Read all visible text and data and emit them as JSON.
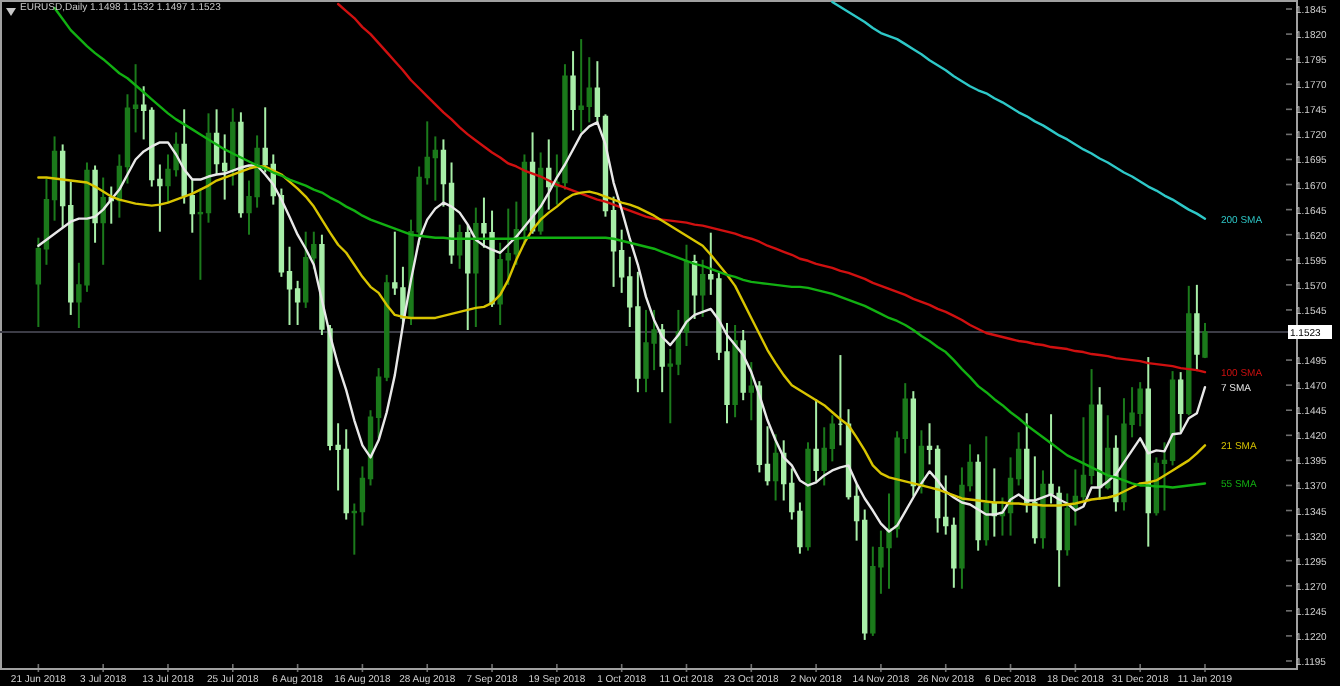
{
  "chart_data": {
    "type": "candlestick",
    "title": "EURUSD,Daily  1.1498 1.1532 1.1497 1.1523",
    "categories": [
      "21 Jun 2018",
      null,
      null,
      null,
      null,
      null,
      null,
      null,
      "3 Jul 2018",
      null,
      null,
      null,
      null,
      null,
      null,
      null,
      "13 Jul 2018",
      null,
      null,
      null,
      null,
      null,
      null,
      null,
      "25 Jul 2018",
      null,
      null,
      null,
      null,
      null,
      null,
      null,
      "6 Aug 2018",
      null,
      null,
      null,
      null,
      null,
      null,
      null,
      "16 Aug 2018",
      null,
      null,
      null,
      null,
      null,
      null,
      null,
      "28 Aug 2018",
      null,
      null,
      null,
      null,
      null,
      null,
      null,
      "7 Sep 2018",
      null,
      null,
      null,
      null,
      null,
      null,
      null,
      "19 Sep 2018",
      null,
      null,
      null,
      null,
      null,
      null,
      null,
      "1 Oct 2018",
      null,
      null,
      null,
      null,
      null,
      null,
      null,
      "11 Oct 2018",
      null,
      null,
      null,
      null,
      null,
      null,
      null,
      "23 Oct 2018",
      null,
      null,
      null,
      null,
      null,
      null,
      null,
      "2 Nov 2018",
      null,
      null,
      null,
      null,
      null,
      null,
      null,
      "14 Nov 2018",
      null,
      null,
      null,
      null,
      null,
      null,
      null,
      "26 Nov 2018",
      null,
      null,
      null,
      null,
      null,
      null,
      null,
      "6 Dec 2018",
      null,
      null,
      null,
      null,
      null,
      null,
      null,
      "18 Dec 2018",
      null,
      null,
      null,
      null,
      null,
      null,
      null,
      "31 Dec 2018",
      null,
      null,
      null,
      null,
      null,
      null,
      null,
      "11 Jan 2019"
    ],
    "ohlc": [
      [
        1.1571,
        1.1617,
        1.1528,
        1.1606
      ],
      [
        1.1606,
        1.1676,
        1.159,
        1.1655
      ],
      [
        1.1655,
        1.1718,
        1.1634,
        1.1703
      ],
      [
        1.1703,
        1.171,
        1.1627,
        1.1649
      ],
      [
        1.1649,
        1.1673,
        1.154,
        1.1553
      ],
      [
        1.1553,
        1.1592,
        1.1527,
        1.157
      ],
      [
        1.157,
        1.1692,
        1.1563,
        1.1684
      ],
      [
        1.1684,
        1.1689,
        1.1612,
        1.1632
      ],
      [
        1.1632,
        1.1677,
        1.159,
        1.1657
      ],
      [
        1.1657,
        1.1668,
        1.1631,
        1.1654
      ],
      [
        1.1654,
        1.17,
        1.1637,
        1.1688
      ],
      [
        1.1688,
        1.176,
        1.1671,
        1.1746
      ],
      [
        1.1746,
        1.179,
        1.1722,
        1.1749
      ],
      [
        1.1749,
        1.1768,
        1.1715,
        1.1744
      ],
      [
        1.1744,
        1.1747,
        1.1668,
        1.1675
      ],
      [
        1.1675,
        1.169,
        1.1623,
        1.1669
      ],
      [
        1.1669,
        1.17,
        1.1652,
        1.1685
      ],
      [
        1.1685,
        1.1722,
        1.1678,
        1.171
      ],
      [
        1.171,
        1.1745,
        1.1651,
        1.1659
      ],
      [
        1.1659,
        1.1676,
        1.1622,
        1.1641
      ],
      [
        1.1641,
        1.1666,
        1.1575,
        1.1642
      ],
      [
        1.1642,
        1.1741,
        1.1632,
        1.1721
      ],
      [
        1.1721,
        1.1745,
        1.168,
        1.1691
      ],
      [
        1.1691,
        1.172,
        1.1655,
        1.1684
      ],
      [
        1.1684,
        1.1746,
        1.1669,
        1.1732
      ],
      [
        1.1732,
        1.1742,
        1.1637,
        1.1642
      ],
      [
        1.1642,
        1.1674,
        1.162,
        1.1658
      ],
      [
        1.1658,
        1.1719,
        1.1647,
        1.1706
      ],
      [
        1.1706,
        1.1747,
        1.1682,
        1.169
      ],
      [
        1.169,
        1.17,
        1.165,
        1.1659
      ],
      [
        1.1659,
        1.1666,
        1.1578,
        1.1583
      ],
      [
        1.1583,
        1.1608,
        1.153,
        1.1566
      ],
      [
        1.1566,
        1.1574,
        1.153,
        1.1553
      ],
      [
        1.1553,
        1.1623,
        1.1547,
        1.1597
      ],
      [
        1.1597,
        1.1623,
        1.1586,
        1.161
      ],
      [
        1.161,
        1.162,
        1.152,
        1.1526
      ],
      [
        1.1526,
        1.153,
        1.1405,
        1.141
      ],
      [
        1.141,
        1.1432,
        1.1365,
        1.1406
      ],
      [
        1.1406,
        1.1426,
        1.1336,
        1.1343
      ],
      [
        1.1343,
        1.1352,
        1.1301,
        1.1344
      ],
      [
        1.1344,
        1.1389,
        1.133,
        1.1377
      ],
      [
        1.1377,
        1.1445,
        1.137,
        1.1438
      ],
      [
        1.1438,
        1.1487,
        1.1417,
        1.1478
      ],
      [
        1.1478,
        1.158,
        1.1474,
        1.1572
      ],
      [
        1.1572,
        1.1623,
        1.156,
        1.1567
      ],
      [
        1.1567,
        1.1588,
        1.1529,
        1.1537
      ],
      [
        1.1537,
        1.1635,
        1.153,
        1.1623
      ],
      [
        1.1623,
        1.1688,
        1.161,
        1.1677
      ],
      [
        1.1677,
        1.1733,
        1.167,
        1.1697
      ],
      [
        1.1697,
        1.1718,
        1.1654,
        1.1704
      ],
      [
        1.1704,
        1.1715,
        1.1648,
        1.1671
      ],
      [
        1.1671,
        1.1692,
        1.1591,
        1.16
      ],
      [
        1.16,
        1.163,
        1.1586,
        1.1622
      ],
      [
        1.1622,
        1.163,
        1.1525,
        1.1582
      ],
      [
        1.1582,
        1.1647,
        1.1528,
        1.1631
      ],
      [
        1.1631,
        1.1657,
        1.1607,
        1.1622
      ],
      [
        1.1622,
        1.1644,
        1.1548,
        1.1551
      ],
      [
        1.1551,
        1.1612,
        1.153,
        1.1595
      ],
      [
        1.1595,
        1.1646,
        1.157,
        1.1601
      ],
      [
        1.1601,
        1.1653,
        1.159,
        1.1625
      ],
      [
        1.1625,
        1.17,
        1.161,
        1.1692
      ],
      [
        1.1692,
        1.1722,
        1.1621,
        1.1624
      ],
      [
        1.1624,
        1.1702,
        1.162,
        1.1686
      ],
      [
        1.1686,
        1.1715,
        1.1645,
        1.1668
      ],
      [
        1.1668,
        1.17,
        1.165,
        1.1672
      ],
      [
        1.1672,
        1.179,
        1.1665,
        1.1778
      ],
      [
        1.1778,
        1.1803,
        1.1724,
        1.1745
      ],
      [
        1.1745,
        1.1815,
        1.1722,
        1.1748
      ],
      [
        1.1748,
        1.1797,
        1.1732,
        1.1766
      ],
      [
        1.1766,
        1.1793,
        1.173,
        1.1738
      ],
      [
        1.1738,
        1.174,
        1.1638,
        1.1644
      ],
      [
        1.1644,
        1.1658,
        1.1568,
        1.1604
      ],
      [
        1.1604,
        1.1625,
        1.1562,
        1.1578
      ],
      [
        1.1578,
        1.1598,
        1.1528,
        1.1548
      ],
      [
        1.1548,
        1.1583,
        1.1463,
        1.1477
      ],
      [
        1.1477,
        1.1545,
        1.1463,
        1.1512
      ],
      [
        1.1512,
        1.1545,
        1.1485,
        1.1525
      ],
      [
        1.1525,
        1.1531,
        1.1463,
        1.1489
      ],
      [
        1.1489,
        1.1506,
        1.1432,
        1.1491
      ],
      [
        1.1491,
        1.1545,
        1.148,
        1.1523
      ],
      [
        1.1523,
        1.161,
        1.1509,
        1.1593
      ],
      [
        1.1593,
        1.16,
        1.1536,
        1.156
      ],
      [
        1.156,
        1.1595,
        1.1538,
        1.158
      ],
      [
        1.158,
        1.1622,
        1.156,
        1.1576
      ],
      [
        1.1576,
        1.1582,
        1.1495,
        1.1503
      ],
      [
        1.1503,
        1.1532,
        1.1432,
        1.1451
      ],
      [
        1.1451,
        1.153,
        1.1438,
        1.1514
      ],
      [
        1.1514,
        1.1525,
        1.1455,
        1.1463
      ],
      [
        1.1463,
        1.1493,
        1.1435,
        1.1469
      ],
      [
        1.1469,
        1.1474,
        1.1383,
        1.1391
      ],
      [
        1.1391,
        1.1429,
        1.137,
        1.1375
      ],
      [
        1.1375,
        1.1421,
        1.1355,
        1.1402
      ],
      [
        1.1402,
        1.1415,
        1.1355,
        1.1372
      ],
      [
        1.1372,
        1.1387,
        1.1336,
        1.1344
      ],
      [
        1.1344,
        1.1353,
        1.1302,
        1.1309
      ],
      [
        1.1309,
        1.1413,
        1.1305,
        1.1406
      ],
      [
        1.1406,
        1.1456,
        1.1374,
        1.1385
      ],
      [
        1.1385,
        1.1428,
        1.137,
        1.1407
      ],
      [
        1.1407,
        1.144,
        1.1394,
        1.1431
      ],
      [
        1.1431,
        1.15,
        1.141,
        1.1431
      ],
      [
        1.1431,
        1.1446,
        1.1356,
        1.1359
      ],
      [
        1.1359,
        1.1372,
        1.1315,
        1.1335
      ],
      [
        1.1335,
        1.1346,
        1.1216,
        1.1223
      ],
      [
        1.1223,
        1.1309,
        1.122,
        1.1289
      ],
      [
        1.1289,
        1.1325,
        1.1262,
        1.1308
      ],
      [
        1.1308,
        1.1362,
        1.1267,
        1.1327
      ],
      [
        1.1327,
        1.1424,
        1.1318,
        1.1417
      ],
      [
        1.1417,
        1.1472,
        1.1402,
        1.1456
      ],
      [
        1.1456,
        1.1464,
        1.1359,
        1.137
      ],
      [
        1.137,
        1.1425,
        1.1362,
        1.1409
      ],
      [
        1.1409,
        1.1432,
        1.1391,
        1.1406
      ],
      [
        1.1406,
        1.141,
        1.1323,
        1.1338
      ],
      [
        1.1338,
        1.138,
        1.1321,
        1.133
      ],
      [
        1.133,
        1.1338,
        1.1268,
        1.1288
      ],
      [
        1.1288,
        1.1388,
        1.1267,
        1.137
      ],
      [
        1.137,
        1.1411,
        1.1364,
        1.1393
      ],
      [
        1.1393,
        1.1401,
        1.1305,
        1.1316
      ],
      [
        1.1316,
        1.1419,
        1.131,
        1.1352
      ],
      [
        1.1352,
        1.1387,
        1.1319,
        1.134
      ],
      [
        1.134,
        1.1358,
        1.132,
        1.1343
      ],
      [
        1.1343,
        1.1398,
        1.132,
        1.1377
      ],
      [
        1.1377,
        1.1423,
        1.137,
        1.1406
      ],
      [
        1.1406,
        1.1442,
        1.1343,
        1.1353
      ],
      [
        1.1353,
        1.1399,
        1.1312,
        1.1318
      ],
      [
        1.1318,
        1.1385,
        1.1307,
        1.1371
      ],
      [
        1.1371,
        1.1441,
        1.1352,
        1.1362
      ],
      [
        1.1362,
        1.1369,
        1.1269,
        1.1306
      ],
      [
        1.1306,
        1.1362,
        1.13,
        1.1347
      ],
      [
        1.1347,
        1.1386,
        1.133,
        1.1359
      ],
      [
        1.1359,
        1.1438,
        1.1355,
        1.138
      ],
      [
        1.138,
        1.1486,
        1.1371,
        1.145
      ],
      [
        1.145,
        1.1468,
        1.1356,
        1.1368
      ],
      [
        1.1368,
        1.144,
        1.1366,
        1.1407
      ],
      [
        1.1407,
        1.142,
        1.1344,
        1.1354
      ],
      [
        1.1354,
        1.1457,
        1.1345,
        1.1431
      ],
      [
        1.1431,
        1.1468,
        1.1418,
        1.1442
      ],
      [
        1.1442,
        1.1473,
        1.1429,
        1.1466
      ],
      [
        1.1466,
        1.1498,
        1.1309,
        1.1343
      ],
      [
        1.1343,
        1.1398,
        1.134,
        1.1392
      ],
      [
        1.1392,
        1.1413,
        1.1345,
        1.1395
      ],
      [
        1.1395,
        1.1484,
        1.139,
        1.1475
      ],
      [
        1.1475,
        1.1483,
        1.1423,
        1.1442
      ],
      [
        1.1442,
        1.1569,
        1.144,
        1.1541
      ],
      [
        1.1541,
        1.157,
        1.1484,
        1.1501
      ],
      [
        1.1498,
        1.1532,
        1.1497,
        1.1523
      ]
    ],
    "colors": [
      "#1b7a1b",
      "#1b7a1b",
      "#1b7a1b",
      "#a8eea8",
      "#a8eea8",
      "#1b7a1b",
      "#1b7a1b",
      "#a8eea8",
      "#1b7a1b",
      "#a8eea8",
      "#1b7a1b",
      "#1b7a1b",
      "#1b7a1b",
      "#a8eea8",
      "#a8eea8",
      "#a8eea8",
      "#1b7a1b",
      "#1b7a1b",
      "#a8eea8",
      "#a8eea8",
      "#1b7a1b",
      "#1b7a1b",
      "#a8eea8",
      "#a8eea8",
      "#1b7a1b",
      "#a8eea8",
      "#1b7a1b",
      "#1b7a1b",
      "#a8eea8",
      "#a8eea8",
      "#a8eea8",
      "#a8eea8",
      "#a8eea8",
      "#1b7a1b",
      "#1b7a1b",
      "#a8eea8",
      "#a8eea8",
      "#a8eea8",
      "#a8eea8",
      "#1b7a1b",
      "#1b7a1b",
      "#1b7a1b",
      "#1b7a1b",
      "#1b7a1b",
      "#a8eea8",
      "#a8eea8",
      "#1b7a1b",
      "#1b7a1b",
      "#1b7a1b",
      "#1b7a1b",
      "#a8eea8",
      "#a8eea8",
      "#1b7a1b",
      "#a8eea8",
      "#1b7a1b",
      "#a8eea8",
      "#a8eea8",
      "#1b7a1b",
      "#1b7a1b",
      "#1b7a1b",
      "#1b7a1b",
      "#a8eea8",
      "#1b7a1b",
      "#a8eea8",
      "#1b7a1b",
      "#1b7a1b",
      "#a8eea8",
      "#1b7a1b",
      "#1b7a1b",
      "#a8eea8",
      "#a8eea8",
      "#a8eea8",
      "#a8eea8",
      "#a8eea8",
      "#a8eea8",
      "#1b7a1b",
      "#1b7a1b",
      "#a8eea8",
      "#1b7a1b",
      "#1b7a1b",
      "#1b7a1b",
      "#a8eea8",
      "#1b7a1b",
      "#a8eea8",
      "#a8eea8",
      "#a8eea8",
      "#1b7a1b",
      "#a8eea8",
      "#1b7a1b",
      "#a8eea8",
      "#a8eea8",
      "#1b7a1b",
      "#a8eea8",
      "#a8eea8",
      "#a8eea8",
      "#1b7a1b",
      "#a8eea8",
      "#1b7a1b",
      "#1b7a1b",
      "#a8eea8",
      "#a8eea8",
      "#a8eea8",
      "#a8eea8",
      "#1b7a1b",
      "#1b7a1b",
      "#1b7a1b",
      "#1b7a1b",
      "#1b7a1b",
      "#a8eea8",
      "#1b7a1b",
      "#a8eea8",
      "#a8eea8",
      "#a8eea8",
      "#a8eea8",
      "#1b7a1b",
      "#1b7a1b",
      "#a8eea8",
      "#1b7a1b",
      "#a8eea8",
      "#1b7a1b",
      "#1b7a1b",
      "#1b7a1b",
      "#a8eea8",
      "#a8eea8",
      "#1b7a1b",
      "#a8eea8",
      "#a8eea8",
      "#1b7a1b",
      "#1b7a1b",
      "#1b7a1b",
      "#1b7a1b",
      "#a8eea8",
      "#1b7a1b",
      "#a8eea8",
      "#1b7a1b",
      "#1b7a1b",
      "#1b7a1b",
      "#a8eea8",
      "#1b7a1b",
      "#1b7a1b",
      "#1b7a1b",
      "#a8eea8",
      "#1b7a1b",
      "#a8eea8",
      "#1b7a1b"
    ],
    "series": [
      {
        "name": "200 SMA",
        "type": "line",
        "color": "#2ec8c8",
        "values": [
          null,
          null,
          null,
          null,
          null,
          null,
          null,
          null,
          null,
          null,
          null,
          null,
          null,
          null,
          null,
          null,
          null,
          null,
          null,
          null,
          null,
          null,
          null,
          null,
          null,
          null,
          null,
          null,
          null,
          null,
          null,
          null,
          null,
          null,
          null,
          null,
          null,
          null,
          null,
          null,
          null,
          null,
          null,
          null,
          null,
          null,
          null,
          null,
          null,
          null,
          null,
          null,
          null,
          null,
          null,
          null,
          null,
          null,
          null,
          null,
          null,
          null,
          null,
          null,
          null,
          null,
          null,
          null,
          null,
          null,
          null,
          null,
          null,
          null,
          null,
          null,
          null,
          null,
          null,
          null,
          null,
          null,
          null,
          null,
          null,
          null,
          null,
          null,
          null,
          null,
          null,
          null,
          null,
          null,
          null,
          null,
          null,
          null,
          1.1852,
          1.1847,
          1.1842,
          1.1837,
          1.1832,
          1.1826,
          1.1821,
          1.1818,
          1.1815,
          1.181,
          1.1805,
          1.18,
          1.1794,
          1.1789,
          1.1784,
          1.1778,
          1.1773,
          1.1768,
          1.1764,
          1.1761,
          1.1756,
          1.1752,
          1.1747,
          1.1742,
          1.1738,
          1.1733,
          1.1729,
          1.1724,
          1.1719,
          1.1715,
          1.171,
          1.1705,
          1.1701,
          1.1696,
          1.1692,
          1.1687,
          1.1682,
          1.1678,
          1.1673,
          1.1668,
          1.1664,
          1.1659,
          1.1655,
          1.165,
          1.1645,
          1.1641,
          1.1636
        ]
      },
      {
        "name": "100 SMA",
        "type": "line",
        "color": "#d01010",
        "values": [
          null,
          null,
          null,
          null,
          null,
          null,
          null,
          null,
          null,
          null,
          null,
          null,
          null,
          null,
          null,
          null,
          null,
          null,
          null,
          null,
          null,
          null,
          null,
          null,
          null,
          null,
          null,
          null,
          null,
          null,
          null,
          null,
          null,
          null,
          null,
          null,
          null,
          1.185,
          1.1843,
          1.1836,
          1.1827,
          1.182,
          1.1811,
          1.1802,
          1.1793,
          1.1784,
          1.1774,
          1.1766,
          1.1758,
          1.175,
          1.1742,
          1.1735,
          1.1727,
          1.172,
          1.1714,
          1.1708,
          1.1702,
          1.1697,
          1.1691,
          1.1688,
          1.1684,
          1.1681,
          1.1678,
          1.1674,
          1.167,
          1.1667,
          1.1664,
          1.1661,
          1.1658,
          1.1655,
          1.1653,
          1.165,
          1.1647,
          1.1644,
          1.1641,
          1.1638,
          1.1636,
          1.1635,
          1.1634,
          1.1633,
          1.1632,
          1.163,
          1.1629,
          1.1627,
          1.1625,
          1.1623,
          1.1621,
          1.1618,
          1.1616,
          1.1613,
          1.1609,
          1.1606,
          1.1603,
          1.16,
          1.1596,
          1.1594,
          1.1591,
          1.1589,
          1.1587,
          1.1584,
          1.1582,
          1.1579,
          1.1576,
          1.1572,
          1.1569,
          1.1566,
          1.1563,
          1.156,
          1.1556,
          1.1553,
          1.155,
          1.1546,
          1.1543,
          1.1539,
          1.1535,
          1.153,
          1.1526,
          1.1522,
          1.152,
          1.1518,
          1.1516,
          1.1514,
          1.1513,
          1.1511,
          1.151,
          1.1508,
          1.1507,
          1.1506,
          1.1504,
          1.1503,
          1.1501,
          1.15,
          1.1499,
          1.1497,
          1.1496,
          1.1495,
          1.1494,
          1.1492,
          1.1491,
          1.149,
          1.1489,
          1.1487,
          1.1486,
          1.1485,
          1.1483
        ]
      },
      {
        "name": "7 SMA",
        "type": "line",
        "color": "#e8e8e8",
        "values": [
          1.1609,
          1.1615,
          1.1621,
          1.1627,
          1.1633,
          1.1636,
          1.1636,
          1.1638,
          1.1645,
          1.1655,
          1.1665,
          1.168,
          1.1695,
          1.1703,
          1.1708,
          1.1712,
          1.1712,
          1.17,
          1.1685,
          1.1675,
          1.1675,
          1.1678,
          1.168,
          1.1681,
          1.1684,
          1.1687,
          1.1689,
          1.1689,
          1.168,
          1.167,
          1.1655,
          1.1638,
          1.162,
          1.1606,
          1.159,
          1.1555,
          1.152,
          1.149,
          1.1465,
          1.1435,
          1.141,
          1.1398,
          1.1415,
          1.1443,
          1.148,
          1.153,
          1.1575,
          1.1615,
          1.1635,
          1.1646,
          1.1652,
          1.1648,
          1.1642,
          1.163,
          1.1615,
          1.1609,
          1.1605,
          1.1602,
          1.161,
          1.1618,
          1.1628,
          1.1638,
          1.1648,
          1.1662,
          1.1677,
          1.169,
          1.1705,
          1.172,
          1.1728,
          1.1732,
          1.171,
          1.1672,
          1.1645,
          1.1616,
          1.159,
          1.1558,
          1.1535,
          1.1518,
          1.151,
          1.152,
          1.1533,
          1.154,
          1.1543,
          1.1546,
          1.1535,
          1.152,
          1.151,
          1.15,
          1.1483,
          1.146,
          1.1435,
          1.1415,
          1.1398,
          1.139,
          1.1375,
          1.137,
          1.1373,
          1.138,
          1.1385,
          1.1388,
          1.139,
          1.1372,
          1.1357,
          1.1345,
          1.1332,
          1.1324,
          1.133,
          1.1344,
          1.1358,
          1.1372,
          1.1384,
          1.1375,
          1.1364,
          1.1358,
          1.1353,
          1.1351,
          1.1346,
          1.1341,
          1.1341,
          1.1343,
          1.1356,
          1.1361,
          1.1355,
          1.1355,
          1.1358,
          1.1361,
          1.1356,
          1.1352,
          1.1345,
          1.1349,
          1.1368,
          1.1368,
          1.1374,
          1.1381,
          1.1393,
          1.1405,
          1.1417,
          1.1402,
          1.1405,
          1.1404,
          1.1421,
          1.1422,
          1.1437,
          1.1442,
          1.1468
        ]
      },
      {
        "name": "21 SMA",
        "type": "line",
        "color": "#d8c400",
        "values": [
          1.1677,
          1.1677,
          1.1676,
          1.1675,
          1.1674,
          1.1673,
          1.1672,
          1.1668,
          1.1663,
          1.1658,
          1.1655,
          1.1653,
          1.1651,
          1.165,
          1.1649,
          1.165,
          1.1652,
          1.1655,
          1.1658,
          1.1661,
          1.1665,
          1.1669,
          1.1674,
          1.1677,
          1.168,
          1.1683,
          1.1686,
          1.1688,
          1.1688,
          1.1684,
          1.168,
          1.1673,
          1.1666,
          1.1658,
          1.1648,
          1.1635,
          1.1622,
          1.161,
          1.1602,
          1.159,
          1.1578,
          1.1568,
          1.1562,
          1.155,
          1.154,
          1.1538,
          1.1537,
          1.1537,
          1.1537,
          1.1537,
          1.1539,
          1.1541,
          1.1543,
          1.1545,
          1.1547,
          1.1548,
          1.1552,
          1.156,
          1.1575,
          1.1595,
          1.1612,
          1.1625,
          1.1635,
          1.1642,
          1.1648,
          1.1655,
          1.166,
          1.1662,
          1.1663,
          1.1661,
          1.1658,
          1.1655,
          1.1652,
          1.165,
          1.1647,
          1.1643,
          1.1639,
          1.1634,
          1.1629,
          1.1624,
          1.1619,
          1.1614,
          1.1609,
          1.16,
          1.159,
          1.158,
          1.1569,
          1.1553,
          1.1537,
          1.1521,
          1.1505,
          1.1492,
          1.148,
          1.147,
          1.1465,
          1.146,
          1.1455,
          1.145,
          1.1443,
          1.1436,
          1.143,
          1.1418,
          1.1405,
          1.139,
          1.1382,
          1.1378,
          1.1376,
          1.1374,
          1.1372,
          1.137,
          1.1368,
          1.1366,
          1.1363,
          1.136,
          1.1357,
          1.1356,
          1.1355,
          1.1354,
          1.1353,
          1.1353,
          1.1352,
          1.1352,
          1.1351,
          1.1351,
          1.135,
          1.135,
          1.135,
          1.1351,
          1.1352,
          1.1354,
          1.1356,
          1.1357,
          1.1358,
          1.136,
          1.1364,
          1.1368,
          1.1372,
          1.1373,
          1.1375,
          1.138,
          1.1385,
          1.139,
          1.1395,
          1.1402,
          1.141
        ]
      },
      {
        "name": "55 SMA",
        "type": "line",
        "color": "#12b012",
        "values": [
          null,
          null,
          1.1846,
          1.1835,
          1.1824,
          1.1816,
          1.1808,
          1.1801,
          1.1795,
          1.1788,
          1.1781,
          1.1776,
          1.1769,
          1.1762,
          1.1755,
          1.1748,
          1.1741,
          1.1735,
          1.173,
          1.1725,
          1.172,
          1.1715,
          1.171,
          1.1705,
          1.1701,
          1.1697,
          1.1693,
          1.1689,
          1.1686,
          1.1682,
          1.1679,
          1.1675,
          1.1672,
          1.1669,
          1.1665,
          1.1662,
          1.1657,
          1.1653,
          1.1648,
          1.1644,
          1.1639,
          1.1635,
          1.1632,
          1.1629,
          1.1626,
          1.1623,
          1.162,
          1.1619,
          1.1618,
          1.1617,
          1.1617,
          1.1616,
          1.1616,
          1.1616,
          1.1616,
          1.1616,
          1.1616,
          1.1616,
          1.1616,
          1.1616,
          1.1617,
          1.1617,
          1.1617,
          1.1617,
          1.1617,
          1.1617,
          1.1617,
          1.1617,
          1.1617,
          1.1617,
          1.1617,
          1.1616,
          1.1614,
          1.1612,
          1.161,
          1.1608,
          1.1606,
          1.1603,
          1.16,
          1.1597,
          1.1594,
          1.1591,
          1.1589,
          1.1586,
          1.1583,
          1.158,
          1.1578,
          1.1575,
          1.1573,
          1.1572,
          1.1571,
          1.157,
          1.1569,
          1.1568,
          1.1568,
          1.1567,
          1.1565,
          1.1563,
          1.1561,
          1.1558,
          1.1555,
          1.1552,
          1.1549,
          1.1545,
          1.1541,
          1.1537,
          1.1534,
          1.153,
          1.1525,
          1.1519,
          1.1514,
          1.1508,
          1.1503,
          1.1495,
          1.1486,
          1.1478,
          1.1469,
          1.1463,
          1.1456,
          1.145,
          1.1443,
          1.1437,
          1.143,
          1.1424,
          1.1418,
          1.1412,
          1.1406,
          1.14,
          1.1396,
          1.1392,
          1.1388,
          1.1384,
          1.138,
          1.1378,
          1.1375,
          1.1372,
          1.137,
          1.137,
          1.1369,
          1.1369,
          1.1368,
          1.1369,
          1.137,
          1.1371,
          1.1372
        ]
      }
    ],
    "ref_lines": [
      {
        "axis": "y",
        "value": 1.1523,
        "label": "1.1523",
        "color": "#3c3c46"
      }
    ],
    "ylim": [
      1.1188,
      1.1854
    ],
    "yticks": [
      1.1845,
      {
        "value": 1.182,
        "label": "1.1820"
      },
      1.1795,
      {
        "value": 1.177,
        "label": "1.1770"
      },
      1.1745,
      {
        "value": 1.172,
        "label": "1.1720"
      },
      1.1695,
      {
        "value": 1.167,
        "label": "1.1670"
      },
      1.1645,
      {
        "value": 1.162,
        "label": "1.1620"
      },
      1.1595,
      {
        "value": 1.157,
        "label": "1.1570"
      },
      1.1545,
      1.1495,
      {
        "value": 1.147,
        "label": "1.1470"
      },
      1.1445,
      {
        "value": 1.142,
        "label": "1.1420"
      },
      1.1395,
      {
        "value": 1.137,
        "label": "1.1370"
      },
      1.1345,
      {
        "value": 1.132,
        "label": "1.1320"
      },
      1.1295,
      {
        "value": 1.127,
        "label": "1.1270"
      },
      1.1245,
      {
        "value": 1.122,
        "label": "1.1220"
      },
      1.1195
    ]
  }
}
